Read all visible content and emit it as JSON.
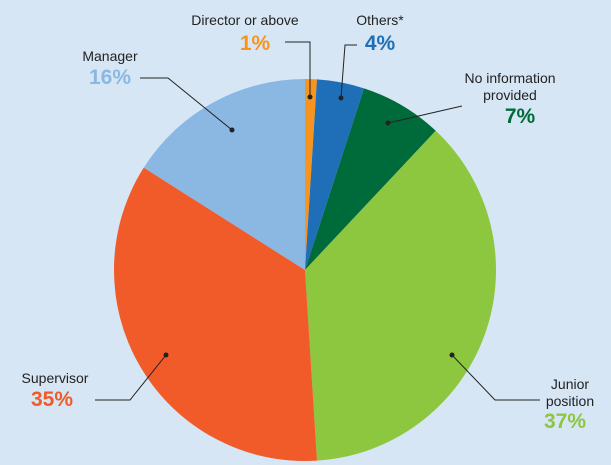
{
  "chart_data": {
    "type": "pie",
    "categories": [
      "Director or above",
      "Others*",
      "No information provided",
      "Junior position",
      "Supervisor",
      "Manager"
    ],
    "values": [
      1,
      4,
      7,
      37,
      35,
      16
    ],
    "value_labels": [
      "1%",
      "4%",
      "7%",
      "37%",
      "35%",
      "16%"
    ],
    "colors": [
      "#f7941d",
      "#1f6fb8",
      "#006b3a",
      "#8dc63f",
      "#f15a29",
      "#8ab8e3"
    ]
  }
}
